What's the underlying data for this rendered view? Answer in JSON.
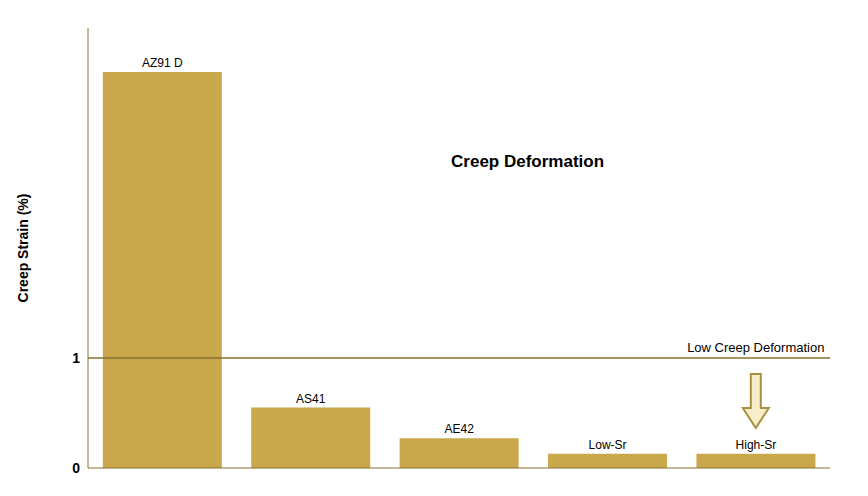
{
  "chart_data": {
    "type": "bar",
    "categories": [
      "AZ91 D",
      "AS41",
      "AE42",
      "Low-Sr",
      "High-Sr"
    ],
    "values": [
      3.6,
      0.55,
      0.27,
      0.13,
      0.13
    ],
    "color": "#C8A84B",
    "ylabel": "Creep Strain (%)",
    "ylim": [
      0,
      4.0
    ],
    "yticks": [
      0,
      1
    ],
    "grid": false,
    "tick_labels": "y",
    "reference_lines": [
      {
        "y": 1.0,
        "color": "#8A7030"
      }
    ],
    "annotations": [
      "Creep Deformation",
      "Low Creep Deformation"
    ]
  }
}
